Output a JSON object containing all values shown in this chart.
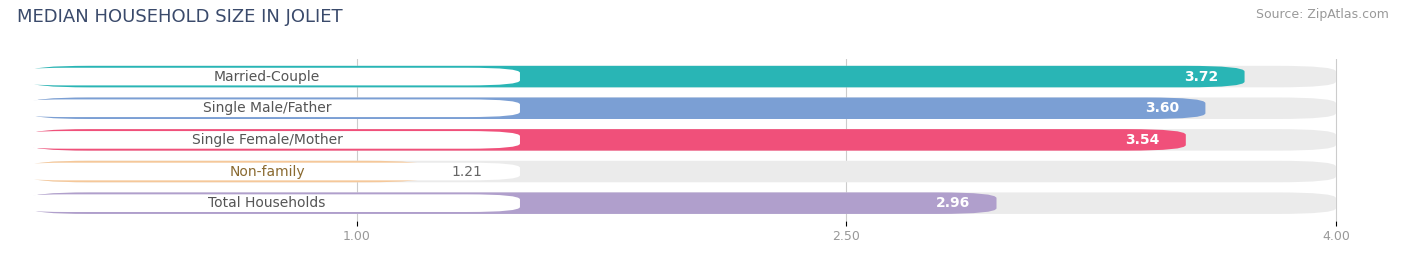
{
  "title": "MEDIAN HOUSEHOLD SIZE IN JOLIET",
  "source": "Source: ZipAtlas.com",
  "categories": [
    "Married-Couple",
    "Single Male/Father",
    "Single Female/Mother",
    "Non-family",
    "Total Households"
  ],
  "values": [
    3.72,
    3.6,
    3.54,
    1.21,
    2.96
  ],
  "bar_colors": [
    "#29b5b5",
    "#7b9fd4",
    "#f0507a",
    "#f5c89a",
    "#b09fcc"
  ],
  "label_text_colors": [
    "#555555",
    "#555555",
    "#555555",
    "#8a6a30",
    "#555555"
  ],
  "xmin": 0.0,
  "xmax": 4.0,
  "xticks": [
    1.0,
    2.5,
    4.0
  ],
  "value_color_light": "#ffffff",
  "value_color_dark": "#666666",
  "background_color": "#ffffff",
  "bar_bg_color": "#ebebeb",
  "label_bg_color": "#ffffff",
  "title_fontsize": 13,
  "source_fontsize": 9,
  "label_fontsize": 10,
  "value_fontsize": 10
}
